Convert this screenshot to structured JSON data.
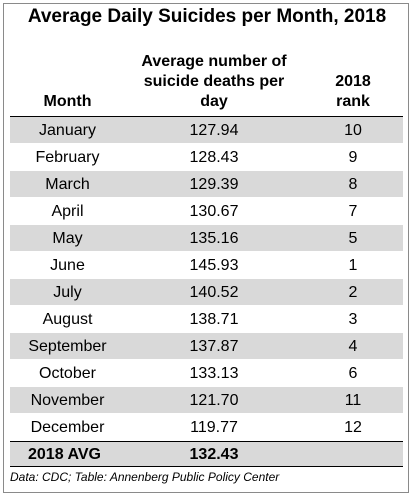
{
  "chart_data": {
    "type": "table",
    "title": "Average Daily Suicides per Month, 2018",
    "columns": [
      "Month",
      "Average number of\nsuicide deaths per\nday",
      "2018\nrank"
    ],
    "rows": [
      {
        "month": "January",
        "avg": "127.94",
        "rank": "10"
      },
      {
        "month": "February",
        "avg": "128.43",
        "rank": "9"
      },
      {
        "month": "March",
        "avg": "129.39",
        "rank": "8"
      },
      {
        "month": "April",
        "avg": "130.67",
        "rank": "7"
      },
      {
        "month": "May",
        "avg": "135.16",
        "rank": "5"
      },
      {
        "month": "June",
        "avg": "145.93",
        "rank": "1"
      },
      {
        "month": "July",
        "avg": "140.52",
        "rank": "2"
      },
      {
        "month": "August",
        "avg": "138.71",
        "rank": "3"
      },
      {
        "month": "September",
        "avg": "137.87",
        "rank": "4"
      },
      {
        "month": "October",
        "avg": "133.13",
        "rank": "6"
      },
      {
        "month": "November",
        "avg": "121.70",
        "rank": "11"
      },
      {
        "month": "December",
        "avg": "119.77",
        "rank": "12"
      }
    ],
    "total": {
      "label": "2018 AVG",
      "avg": "132.43"
    },
    "source": "Data: CDC; Table: Annenberg Public Policy Center",
    "colors": {
      "shade": "#d9d9d9",
      "text": "#000000"
    }
  }
}
